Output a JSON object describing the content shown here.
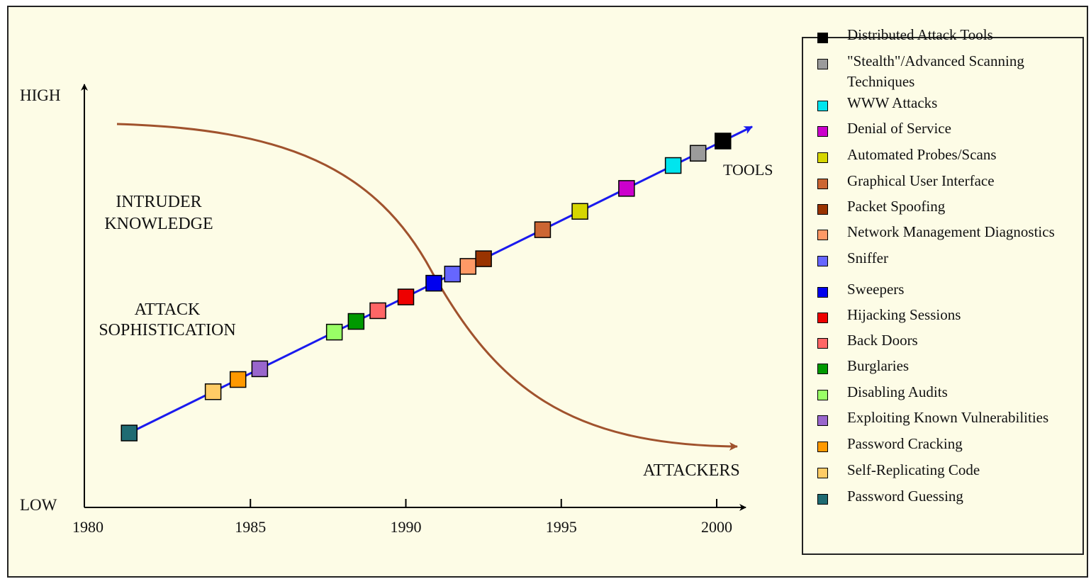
{
  "chart_data": {
    "type": "line",
    "y_axis": {
      "high_label": "HIGH",
      "low_label": "LOW"
    },
    "x_ticks": [
      "1980",
      "1985",
      "1990",
      "1995",
      "2000"
    ],
    "xlim": [
      1980,
      2000
    ],
    "annotations": {
      "knowledge": [
        "INTRUDER",
        "KNOWLEDGE"
      ],
      "sophistication": [
        "ATTACK",
        "SOPHISTICATION"
      ],
      "tools": "TOOLS",
      "attackers": "ATTACKERS"
    },
    "series": [
      {
        "name": "Attack sophistication",
        "color": "#1a1aee"
      },
      {
        "name": "Intruder knowledge",
        "color": "#a0522d"
      }
    ],
    "attacks": [
      {
        "label": "Distributed Attack Tools",
        "color": "#000000",
        "year": 2000.2
      },
      {
        "label": "\"Stealth\"/Advanced Scanning Techniques",
        "color": "#9b9b9b",
        "year": 1999.4
      },
      {
        "label": "WWW Attacks",
        "color": "#00e5ee",
        "year": 1998.6
      },
      {
        "label": "Denial of Service",
        "color": "#cc00cc",
        "year": 1997.1
      },
      {
        "label": "Automated Probes/Scans",
        "color": "#d6d600",
        "year": 1995.6
      },
      {
        "label": "Graphical User Interface",
        "color": "#cc6633",
        "year": 1994.4
      },
      {
        "label": "Packet Spoofing",
        "color": "#993300",
        "year": 1992.5
      },
      {
        "label": "Network Management Diagnostics",
        "color": "#ff9966",
        "year": 1992.0
      },
      {
        "label": "Sniffer",
        "color": "#6666ff",
        "year": 1991.5
      },
      {
        "label": "Sweepers",
        "color": "#0000ee",
        "year": 1990.9
      },
      {
        "label": "Hijacking Sessions",
        "color": "#ee0000",
        "year": 1990.0
      },
      {
        "label": "Back Doors",
        "color": "#ff6666",
        "year": 1989.1
      },
      {
        "label": "Burglaries",
        "color": "#009900",
        "year": 1988.4
      },
      {
        "label": "Disabling Audits",
        "color": "#99ff66",
        "year": 1987.7
      },
      {
        "label": "Exploiting Known Vulnerabilities",
        "color": "#9966cc",
        "year": 1985.3
      },
      {
        "label": "Password Cracking",
        "color": "#ff9900",
        "year": 1984.6
      },
      {
        "label": "Self-Replicating Code",
        "color": "#ffcc66",
        "year": 1983.8
      },
      {
        "label": "Password Guessing",
        "color": "#1f6b72",
        "year": 1981.1
      }
    ]
  }
}
